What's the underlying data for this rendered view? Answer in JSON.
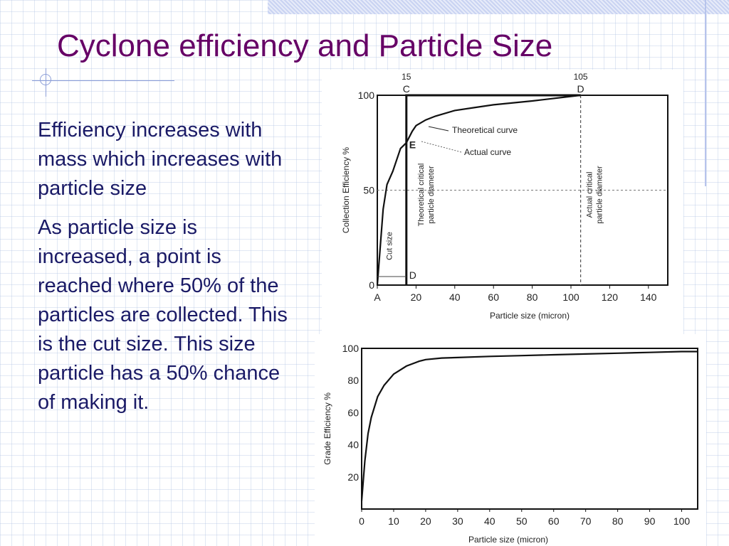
{
  "slide": {
    "title": "Cyclone efficiency and Particle Size",
    "paragraphs": [
      "Efficiency increases with mass which increases with particle size",
      "As particle size is increased, a point is reached where 50% of the particles are collected. This is the cut size.  This size particle has a 50% chance of making it."
    ]
  },
  "colors": {
    "title": "#660066",
    "body_text": "#1a1a66",
    "decor_bar": "#c9d3f2",
    "grid": "#aabee1"
  },
  "chart_data": [
    {
      "type": "line",
      "xlabel": "Particle size (micron)",
      "ylabel": "Collection Efficiency  %",
      "xlim": [
        0,
        150
      ],
      "ylim": [
        0,
        100
      ],
      "x_ticks": [
        "A",
        "20",
        "40",
        "60",
        "80",
        "100",
        "120",
        "140"
      ],
      "y_ticks": [
        "0",
        "50",
        "100"
      ],
      "top_labels": [
        "15",
        "105"
      ],
      "point_labels": [
        "C",
        "D",
        "E",
        "D"
      ],
      "annotations": {
        "theoretical_curve": "Theoretical curve",
        "actual_curve": "Actual curve",
        "cut_size": "Cut size",
        "theoretical_critical": "Theoretical critical particle diameter",
        "actual_critical": "Actual critical particle diameter"
      },
      "series": [
        {
          "name": "Actual curve",
          "x": [
            0,
            1.5,
            3,
            5,
            8,
            10,
            12,
            15,
            18,
            20,
            25,
            30,
            40,
            50,
            60,
            80,
            105
          ],
          "y": [
            0,
            20,
            40,
            53,
            60,
            66,
            72,
            75,
            81,
            84,
            87,
            89,
            92,
            93.5,
            95,
            97,
            100
          ]
        },
        {
          "name": "Theoretical curve",
          "x": [
            15,
            15,
            105
          ],
          "y": [
            0,
            100,
            100
          ]
        }
      ],
      "reference_lines": {
        "cut_size_x": 15,
        "actual_critical_x": 105,
        "fifty_percent_y": 50
      },
      "grid": false
    },
    {
      "type": "line",
      "xlabel": "Particle size (micron)",
      "ylabel": "Grade Efficiency  %",
      "xlim": [
        0,
        105
      ],
      "ylim": [
        0,
        100
      ],
      "x_ticks": [
        "0",
        "10",
        "20",
        "30",
        "40",
        "50",
        "60",
        "70",
        "80",
        "90",
        "100"
      ],
      "y_ticks": [
        "20",
        "40",
        "60",
        "80",
        "100"
      ],
      "series": [
        {
          "x": [
            0,
            1,
            2,
            3,
            5,
            7,
            10,
            14,
            18,
            20,
            25,
            30,
            40,
            50,
            60,
            70,
            80,
            90,
            100,
            105
          ],
          "y": [
            5,
            30,
            47,
            57,
            70,
            77,
            84,
            89,
            92,
            93,
            94,
            94.3,
            95,
            95.5,
            96,
            96.5,
            97,
            97.5,
            98,
            98
          ]
        }
      ],
      "grid": false
    }
  ]
}
